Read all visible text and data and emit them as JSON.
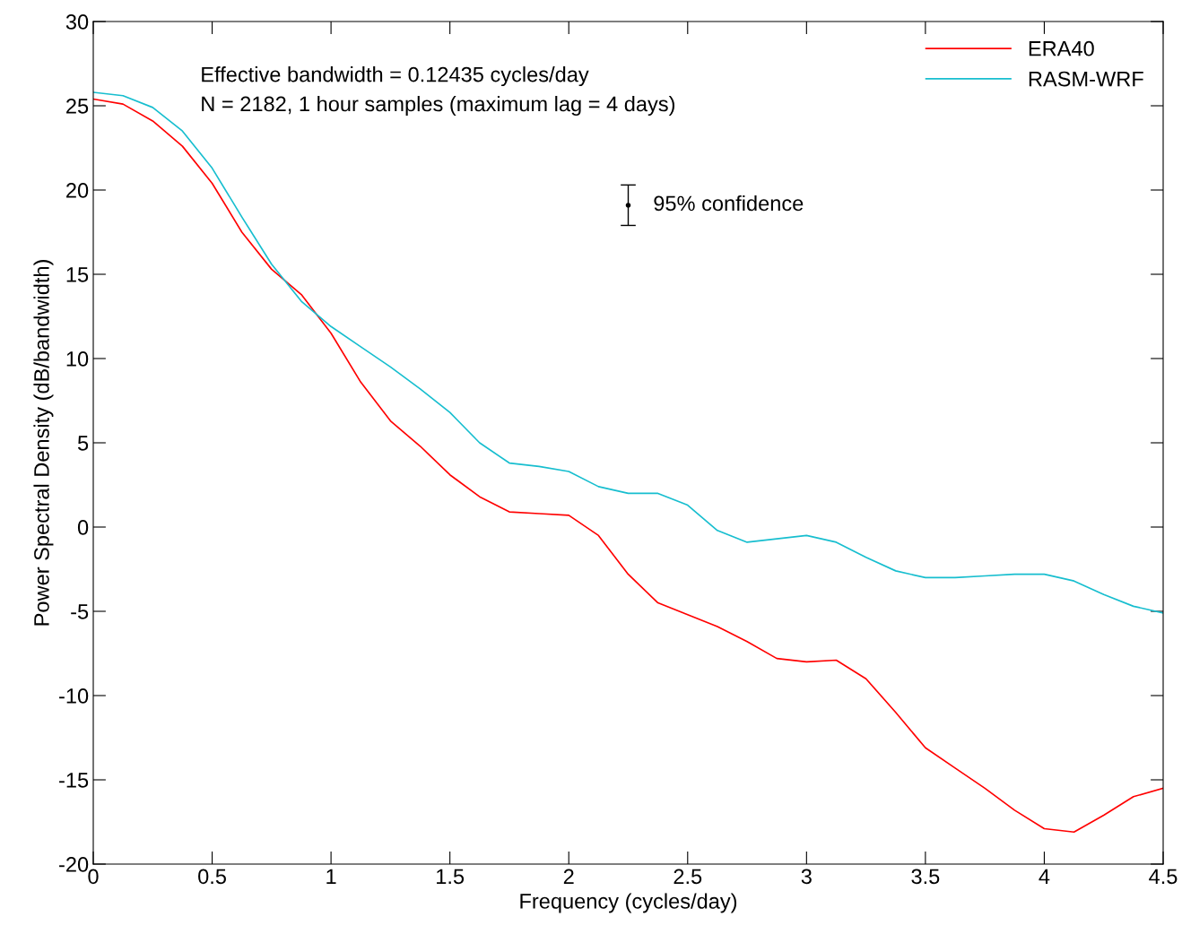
{
  "chart_data": {
    "type": "line",
    "xlabel": "Frequency (cycles/day)",
    "ylabel": "Power Spectral Density (dB/bandwidth)",
    "x": [
      0,
      0.125,
      0.25,
      0.375,
      0.5,
      0.625,
      0.75,
      0.875,
      1.0,
      1.125,
      1.25,
      1.375,
      1.5,
      1.625,
      1.75,
      1.875,
      2.0,
      2.125,
      2.25,
      2.375,
      2.5,
      2.625,
      2.75,
      2.875,
      3.0,
      3.125,
      3.25,
      3.375,
      3.5,
      3.625,
      3.75,
      3.875,
      4.0,
      4.125,
      4.25,
      4.375,
      4.5
    ],
    "series": [
      {
        "name": "ERA40",
        "color": "#ff0000",
        "values": [
          25.4,
          25.1,
          24.1,
          22.6,
          20.4,
          17.5,
          15.3,
          13.8,
          11.5,
          8.6,
          6.3,
          4.8,
          3.1,
          1.8,
          0.9,
          0.8,
          0.7,
          -0.5,
          -2.8,
          -4.5,
          -5.2,
          -5.9,
          -6.8,
          -7.8,
          -8.0,
          -7.9,
          -9.0,
          -11.0,
          -13.1,
          -14.3,
          -15.5,
          -16.8,
          -17.9,
          -18.1,
          -17.1,
          -16.0,
          -15.5
        ]
      },
      {
        "name": "RASM-WRF",
        "color": "#17becf",
        "values": [
          25.8,
          25.6,
          24.9,
          23.5,
          21.3,
          18.4,
          15.6,
          13.4,
          11.9,
          10.7,
          9.5,
          8.2,
          6.8,
          5.0,
          3.8,
          3.6,
          3.3,
          2.4,
          2.0,
          2.0,
          1.3,
          -0.2,
          -0.9,
          -0.7,
          -0.5,
          -0.9,
          -1.8,
          -2.6,
          -3.0,
          -3.0,
          -2.9,
          -2.8,
          -2.8,
          -3.2,
          -4.0,
          -4.7,
          -5.1
        ]
      },
      {
        "type": "scatter",
        "color": "#000000",
        "x": [
          2.25
        ],
        "values": [
          19.1
        ],
        "errors": [
          1.2
        ]
      }
    ],
    "annotations": [
      "Effective bandwidth = 0.12435 cycles/day",
      "N = 2182, 1 hour samples (maximum lag = 4 days)",
      {
        "text": "95% confidence",
        "x": 2.25,
        "y": 19.1
      }
    ],
    "xlim": [
      0,
      4.5
    ],
    "ylim": [
      -20,
      30
    ],
    "xticks": [
      0,
      0.5,
      1,
      1.5,
      2,
      2.5,
      3,
      3.5,
      4,
      4.5
    ],
    "yticks": [
      -20,
      -15,
      -10,
      -5,
      0,
      5,
      10,
      15,
      20,
      25,
      30
    ],
    "grid": false,
    "legend": "top right",
    "marker": "none",
    "line_style": "solid"
  }
}
